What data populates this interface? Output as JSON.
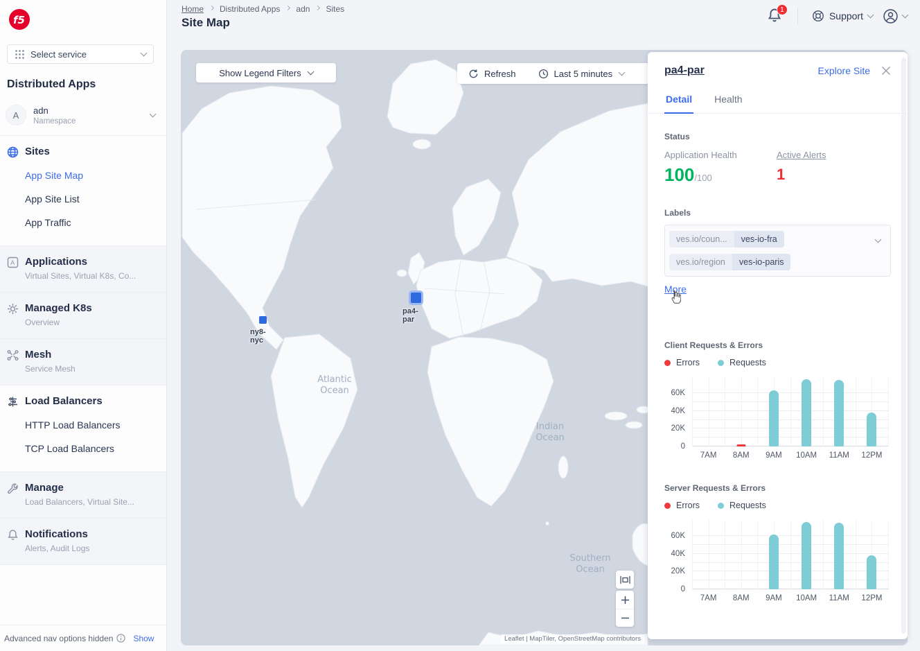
{
  "colors": {
    "accent-blue": "#3b6ce8",
    "navy": "#222d45",
    "status-green": "#00b55f",
    "status-red": "#ee2e32",
    "chart-teal": "#7dccd6",
    "marker-blue": "#2f6bdf",
    "f5-red": "#e4002b",
    "map-ocean": "#d0d7e1"
  },
  "topbar": {
    "breadcrumb": [
      "Home",
      "Distributed Apps",
      "adn",
      "Sites"
    ],
    "page_title": "Site Map",
    "notification_badge": "1",
    "support_label": "Support"
  },
  "sidebar": {
    "select_service_label": "Select service",
    "product_title": "Distributed Apps",
    "namespace": {
      "initial": "A",
      "name": "adn",
      "type_label": "Namespace"
    },
    "nav": [
      {
        "label": "Sites",
        "children": [
          "App Site Map",
          "App Site List",
          "App Traffic"
        ],
        "active_child": "App Site Map"
      },
      {
        "label": "Applications",
        "subtitle": "Virtual Sites, Virtual K8s, Co..."
      },
      {
        "label": "Managed K8s",
        "subtitle": "Overview"
      },
      {
        "label": "Mesh",
        "subtitle": "Service Mesh"
      },
      {
        "label": "Load Balancers",
        "children": [
          "HTTP Load Balancers",
          "TCP Load Balancers"
        ]
      },
      {
        "label": "Manage",
        "subtitle": "Load Balancers, Virtual Site..."
      },
      {
        "label": "Notifications",
        "subtitle": "Alerts, Audit Logs"
      }
    ],
    "footer": {
      "hidden_text": "Advanced nav options hidden",
      "show_label": "Show"
    }
  },
  "map": {
    "legend_filters_label": "Show Legend Filters",
    "refresh_label": "Refresh",
    "time_range_label": "Last 5 minutes",
    "markers": [
      {
        "label": "ny8-nyc",
        "selected": false
      },
      {
        "label": "pa4-par",
        "selected": true
      }
    ],
    "ocean_labels": [
      "Atlantic Ocean",
      "Indian Ocean",
      "Southern Ocean"
    ],
    "attribution": "Leaflet | MapTiler, OpenStreetMap contributors"
  },
  "panel": {
    "title": "pa4-par",
    "explore_label": "Explore Site",
    "tabs": [
      "Detail",
      "Health"
    ],
    "active_tab": "Detail",
    "status": {
      "heading": "Status",
      "app_health_label": "Application Health",
      "app_health_value": "100",
      "app_health_max": "/100",
      "active_alerts_label": "Active Alerts",
      "active_alerts_value": "1"
    },
    "labels": {
      "heading": "Labels",
      "chips": [
        {
          "key": "ves.io/coun...",
          "value": "ves-io-fra"
        },
        {
          "key": "ves.io/region",
          "value": "ves-io-paris"
        }
      ],
      "more_label": "More"
    }
  },
  "chart_data": [
    {
      "type": "bar",
      "title": "Client Requests & Errors",
      "categories": [
        "7AM",
        "8AM",
        "9AM",
        "10AM",
        "11AM",
        "12PM"
      ],
      "series": [
        {
          "name": "Errors",
          "color": "#ee3a3a",
          "values": [
            0,
            1200,
            0,
            0,
            0,
            0
          ]
        },
        {
          "name": "Requests",
          "color": "#7dccd6",
          "values": [
            0,
            0,
            63000,
            76000,
            75000,
            38000
          ]
        }
      ],
      "ylim": [
        0,
        78000
      ],
      "yticks": [
        {
          "v": 0,
          "label": "0"
        },
        {
          "v": 20000,
          "label": "20K"
        },
        {
          "v": 40000,
          "label": "40K"
        },
        {
          "v": 60000,
          "label": "60K"
        }
      ],
      "grid_step": 10000,
      "legend_position": "top",
      "xlabel": "",
      "ylabel": ""
    },
    {
      "type": "bar",
      "title": "Server Requests & Errors",
      "categories": [
        "7AM",
        "8AM",
        "9AM",
        "10AM",
        "11AM",
        "12PM"
      ],
      "series": [
        {
          "name": "Errors",
          "color": "#ee3a3a",
          "values": [
            0,
            0,
            0,
            0,
            0,
            0
          ]
        },
        {
          "name": "Requests",
          "color": "#7dccd6",
          "values": [
            0,
            0,
            62000,
            76000,
            75000,
            38000
          ]
        }
      ],
      "ylim": [
        0,
        78000
      ],
      "yticks": [
        {
          "v": 0,
          "label": "0"
        },
        {
          "v": 20000,
          "label": "20K"
        },
        {
          "v": 40000,
          "label": "40K"
        },
        {
          "v": 60000,
          "label": "60K"
        }
      ],
      "grid_step": 10000,
      "legend_position": "top",
      "xlabel": "",
      "ylabel": ""
    }
  ]
}
